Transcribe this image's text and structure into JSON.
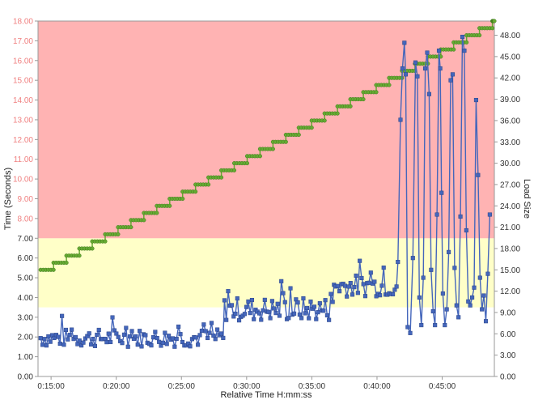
{
  "chart_data": {
    "type": "line",
    "title": "",
    "xlabel": "Relative Time H:mm:ss",
    "ylabel_left": "Time (Seconds)",
    "ylabel_right": "Load Size",
    "x_range_minutes": [
      14,
      49
    ],
    "x_ticks": [
      {
        "minute": 15,
        "label": "0:15:00"
      },
      {
        "minute": 20,
        "label": "0:20:00"
      },
      {
        "minute": 25,
        "label": "0:25:00"
      },
      {
        "minute": 30,
        "label": "0:30:00"
      },
      {
        "minute": 35,
        "label": "0:35:00"
      },
      {
        "minute": 40,
        "label": "0:40:00"
      },
      {
        "minute": 45,
        "label": "0:45:00"
      }
    ],
    "y_left_range": [
      0,
      18
    ],
    "y_left_ticks": [
      "0.00",
      "1.00",
      "2.00",
      "3.00",
      "4.00",
      "5.00",
      "6.00",
      "7.00",
      "8.00",
      "9.00",
      "10.00",
      "11.00",
      "12.00",
      "13.00",
      "14.00",
      "15.00",
      "16.00",
      "17.00",
      "18.00"
    ],
    "y_right_range": [
      0,
      50
    ],
    "y_right_ticks": [
      "0.00",
      "3.00",
      "6.00",
      "9.00",
      "12.00",
      "15.00",
      "18.00",
      "21.00",
      "24.00",
      "27.00",
      "30.00",
      "33.00",
      "36.00",
      "39.00",
      "42.00",
      "45.00",
      "48.00"
    ],
    "bands": [
      {
        "from": 0,
        "to": 3.5,
        "color": "#ffffff"
      },
      {
        "from": 3.5,
        "to": 7.0,
        "color": "#ffffc8"
      },
      {
        "from": 7.0,
        "to": 18.0,
        "color": "#ffb3b3"
      }
    ],
    "grid": false,
    "series": [
      {
        "axis": "left",
        "color": "#4466bb",
        "marker": "square",
        "segments": [
          {
            "from": 14.2,
            "to": 28.2,
            "base": 1.95,
            "amp": 0.45,
            "count": 95
          },
          {
            "from": 28.3,
            "to": 36.6,
            "base": 3.4,
            "amp": 0.6,
            "count": 60
          },
          {
            "from": 36.7,
            "to": 41.5,
            "base": 4.6,
            "amp": 0.55,
            "count": 35
          }
        ],
        "spike_points": [
          [
            41.6,
            5.8
          ],
          [
            41.8,
            13.0
          ],
          [
            41.95,
            15.6
          ],
          [
            42.1,
            16.9
          ],
          [
            42.2,
            15.3
          ],
          [
            42.35,
            2.5
          ],
          [
            42.55,
            2.2
          ],
          [
            42.75,
            6.0
          ],
          [
            42.95,
            15.9
          ],
          [
            43.1,
            15.2
          ],
          [
            43.25,
            4.0
          ],
          [
            43.4,
            2.6
          ],
          [
            43.55,
            5.0
          ],
          [
            43.7,
            15.6
          ],
          [
            43.85,
            16.4
          ],
          [
            44.0,
            14.3
          ],
          [
            44.15,
            5.4
          ],
          [
            44.3,
            3.3
          ],
          [
            44.45,
            2.6
          ],
          [
            44.6,
            8.2
          ],
          [
            44.75,
            16.5
          ],
          [
            44.85,
            15.6
          ],
          [
            44.95,
            9.3
          ],
          [
            45.05,
            4.2
          ],
          [
            45.2,
            2.6
          ],
          [
            45.35,
            3.4
          ],
          [
            45.5,
            6.3
          ],
          [
            45.65,
            15.0
          ],
          [
            45.8,
            15.3
          ],
          [
            45.95,
            5.5
          ],
          [
            46.1,
            3.6
          ],
          [
            46.25,
            3.0
          ],
          [
            46.4,
            8.1
          ],
          [
            46.55,
            17.2
          ],
          [
            46.7,
            16.5
          ],
          [
            46.85,
            7.4
          ],
          [
            47.0,
            3.8
          ],
          [
            47.15,
            3.6
          ],
          [
            47.3,
            4.0
          ],
          [
            47.45,
            4.5
          ],
          [
            47.6,
            14.0
          ],
          [
            47.75,
            10.2
          ],
          [
            47.9,
            5.0
          ],
          [
            48.05,
            3.4
          ],
          [
            48.2,
            4.1
          ],
          [
            48.35,
            2.8
          ],
          [
            48.5,
            5.2
          ],
          [
            48.65,
            8.2
          ]
        ]
      },
      {
        "axis": "right",
        "color": "#66aa33",
        "marker": "circle",
        "steps": {
          "start_minute": 14.2,
          "end_minute": 49.0,
          "start_value": 15,
          "step_value": 1,
          "step_minutes": 0.99
        }
      }
    ]
  }
}
